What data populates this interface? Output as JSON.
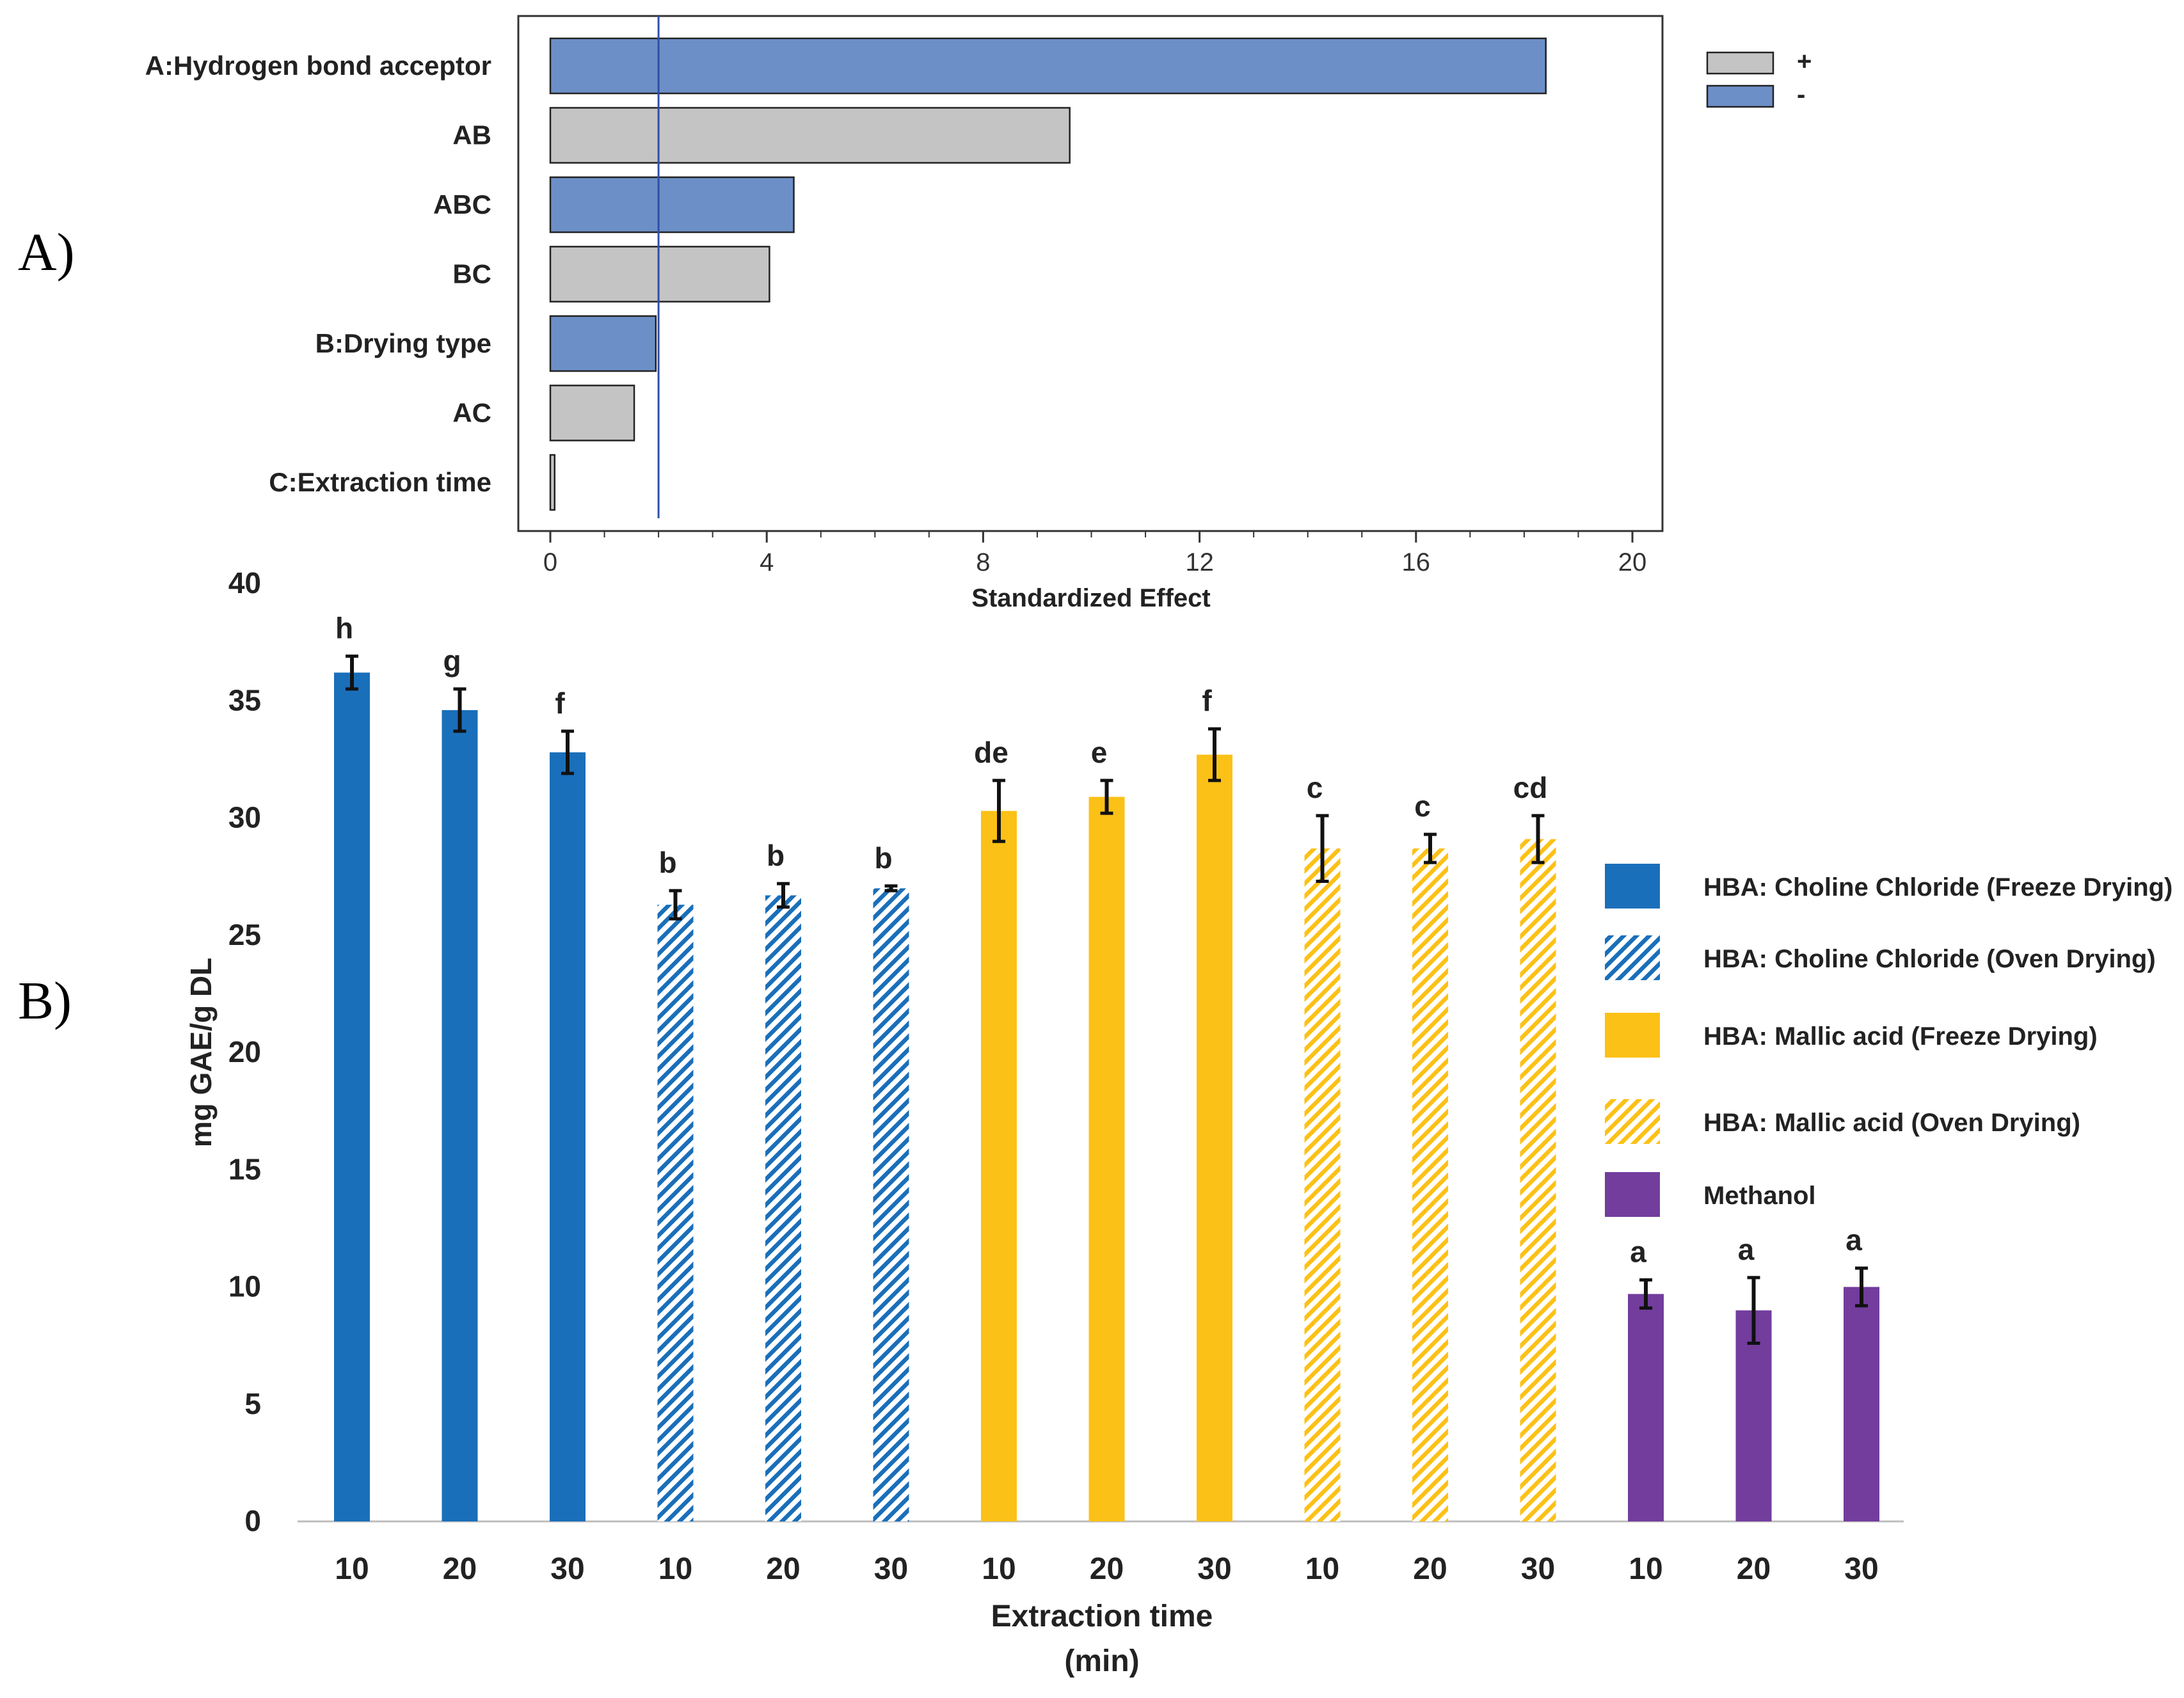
{
  "panels": {
    "a": "A)",
    "b": "B)"
  },
  "chart_data": [
    {
      "type": "bar",
      "orientation": "horizontal",
      "title": "",
      "xlabel": "Standardized Effect",
      "ylabel": "",
      "xlim": [
        0,
        20
      ],
      "xticks": [
        "0",
        "4",
        "8",
        "12",
        "16",
        "20"
      ],
      "reference_line": 2.0,
      "categories": [
        "A:Hydrogen bond acceptor",
        "AB",
        "ABC",
        "BC",
        "B:Drying type",
        "AC",
        "C:Extraction time"
      ],
      "values": [
        18.4,
        9.6,
        4.5,
        4.05,
        1.95,
        1.55,
        0.08
      ],
      "signs": [
        "-",
        "+",
        "-",
        "+",
        "-",
        "+",
        "+"
      ],
      "legend": [
        {
          "label": "+",
          "color": "#c4c4c4"
        },
        {
          "label": "-",
          "color": "#6c8fc7"
        }
      ],
      "legend_position": "right"
    },
    {
      "type": "bar",
      "title": "",
      "xlabel": "Extraction time",
      "xlabel2": "(min)",
      "ylabel": "mg GAE/g DL",
      "ylim": [
        0,
        40
      ],
      "yticks": [
        "0",
        "5",
        "10",
        "15",
        "20",
        "25",
        "30",
        "35",
        "40"
      ],
      "categories": [
        "10",
        "20",
        "30",
        "10",
        "20",
        "30",
        "10",
        "20",
        "30",
        "10",
        "20",
        "30",
        "10",
        "20",
        "30"
      ],
      "values": [
        36.2,
        34.6,
        32.8,
        26.3,
        26.7,
        27.0,
        30.3,
        30.9,
        32.7,
        28.7,
        28.7,
        29.1,
        9.7,
        9.0,
        10.0
      ],
      "errors": [
        0.7,
        0.9,
        0.9,
        0.6,
        0.5,
        0.1,
        1.3,
        0.7,
        1.1,
        1.4,
        0.6,
        1.0,
        0.6,
        1.4,
        0.8
      ],
      "letters": [
        "h",
        "g",
        "f",
        "b",
        "b",
        "b",
        "de",
        "e",
        "f",
        "c",
        "c",
        "cd",
        "a",
        "a",
        "a"
      ],
      "groups": [
        0,
        0,
        0,
        1,
        1,
        1,
        2,
        2,
        2,
        3,
        3,
        3,
        4,
        4,
        4
      ],
      "series": [
        {
          "name": "HBA: Choline Chloride (Freeze Drying)",
          "color": "#1a6fba",
          "pattern": "solid"
        },
        {
          "name": "HBA: Choline Chloride (Oven Drying)",
          "color": "#1a6fba",
          "pattern": "hatched"
        },
        {
          "name": "HBA: Mallic acid (Freeze Drying)",
          "color": "#fcc116",
          "pattern": "solid"
        },
        {
          "name": "HBA: Mallic acid (Oven Drying)",
          "color": "#fcc116",
          "pattern": "hatched"
        },
        {
          "name": "Methanol",
          "color": "#723d9c",
          "pattern": "solid"
        }
      ],
      "legend_position": "right"
    }
  ]
}
